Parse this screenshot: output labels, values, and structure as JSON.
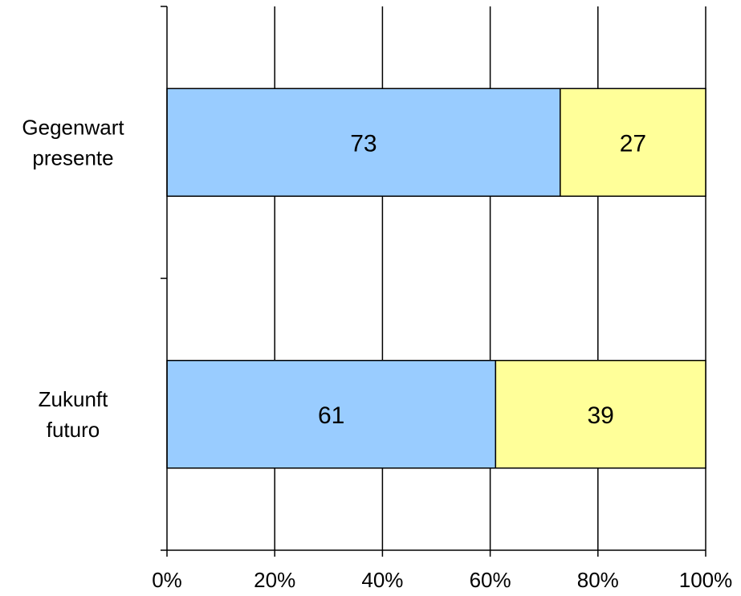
{
  "chart_data": {
    "type": "bar",
    "orientation": "horizontal",
    "stacked": "percent",
    "categories": [
      [
        "Gegenwart",
        "presente"
      ],
      [
        "Zukunft",
        "futuro"
      ]
    ],
    "series": [
      {
        "values": [
          73,
          61
        ],
        "color": "#99ccff"
      },
      {
        "values": [
          27,
          39
        ],
        "color": "#ffff99"
      }
    ],
    "xlim": [
      0,
      100
    ],
    "x_ticks": [
      "0%",
      "20%",
      "40%",
      "60%",
      "80%",
      "100%"
    ],
    "grid": true,
    "legend": "none"
  }
}
